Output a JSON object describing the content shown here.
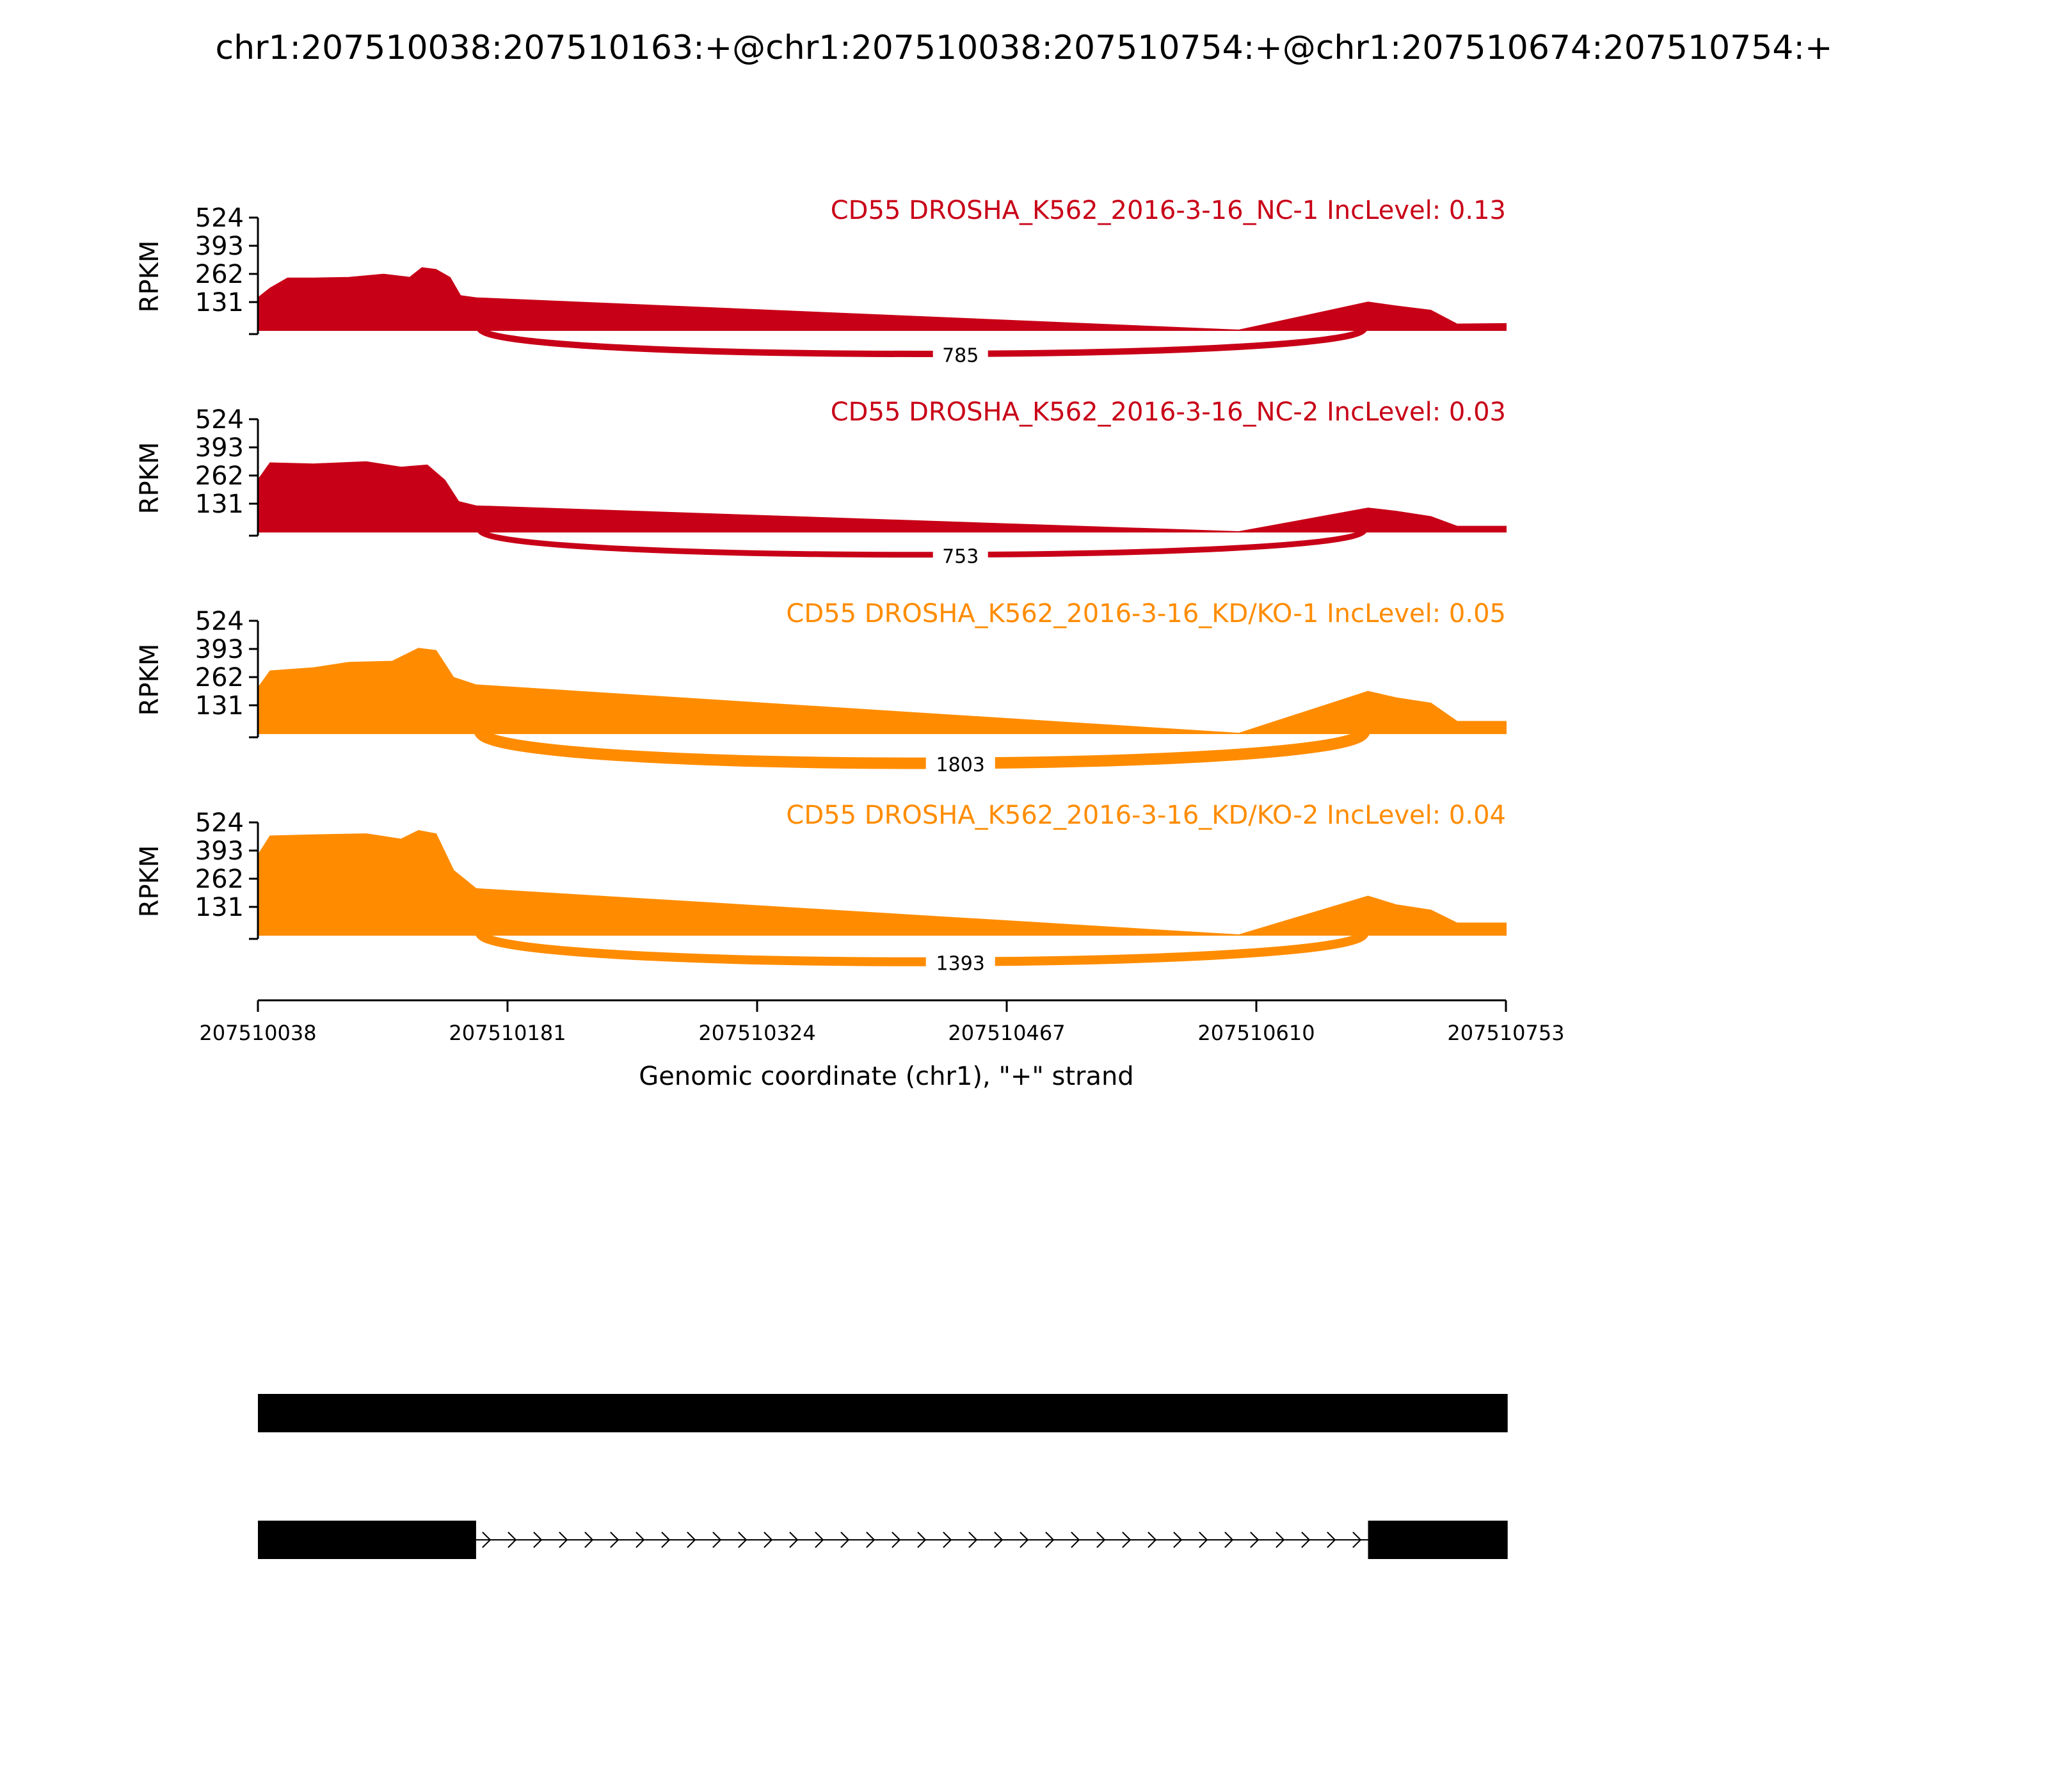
{
  "title": "chr1:207510038:207510163:+@chr1:207510038:207510754:+@chr1:207510674:207510754:+",
  "chart_data": {
    "type": "area",
    "xlabel": "Genomic coordinate (chr1), \"+\" strand",
    "ylabel": "RPKM",
    "xlim": [
      207510038,
      207510753
    ],
    "xticks": [
      207510038,
      207510181,
      207510324,
      207510467,
      207510610,
      207510753
    ],
    "ylim": [
      0,
      524
    ],
    "yticks": [
      131,
      262,
      393,
      524
    ],
    "exon1_end": 207510163,
    "exon2_start": 207510674,
    "panels": [
      {
        "label": "CD55 DROSHA_K562_2016-3-16_NC-1 IncLevel: 0.13",
        "color": "#c80017",
        "junction_count": "785",
        "junction_width": 10,
        "coverage": [
          [
            207510038,
            150
          ],
          [
            207510045,
            195
          ],
          [
            207510055,
            242
          ],
          [
            207510070,
            242
          ],
          [
            207510090,
            245
          ],
          [
            207510110,
            260
          ],
          [
            207510125,
            245
          ],
          [
            207510132,
            290
          ],
          [
            207510140,
            282
          ],
          [
            207510148,
            245
          ],
          [
            207510154,
            160
          ],
          [
            207510163,
            150
          ],
          [
            207510600,
            0
          ],
          [
            207510674,
            130
          ],
          [
            207510690,
            112
          ],
          [
            207510710,
            92
          ],
          [
            207510725,
            28
          ],
          [
            207510753,
            30
          ]
        ]
      },
      {
        "label": "CD55 DROSHA_K562_2016-3-16_NC-2 IncLevel: 0.03",
        "color": "#c80017",
        "junction_count": "753",
        "junction_width": 9,
        "coverage": [
          [
            207510038,
            240
          ],
          [
            207510045,
            320
          ],
          [
            207510070,
            315
          ],
          [
            207510100,
            325
          ],
          [
            207510120,
            300
          ],
          [
            207510135,
            310
          ],
          [
            207510145,
            240
          ],
          [
            207510153,
            140
          ],
          [
            207510163,
            120
          ],
          [
            207510600,
            0
          ],
          [
            207510674,
            110
          ],
          [
            207510690,
            95
          ],
          [
            207510710,
            70
          ],
          [
            207510725,
            25
          ],
          [
            207510753,
            25
          ]
        ]
      },
      {
        "label": "CD55 DROSHA_K562_2016-3-16_KD/KO-1 IncLevel: 0.05",
        "color": "#ff8c00",
        "junction_count": "1803",
        "junction_width": 18,
        "coverage": [
          [
            207510038,
            210
          ],
          [
            207510045,
            290
          ],
          [
            207510070,
            305
          ],
          [
            207510090,
            330
          ],
          [
            207510115,
            335
          ],
          [
            207510130,
            395
          ],
          [
            207510140,
            385
          ],
          [
            207510150,
            260
          ],
          [
            207510163,
            225
          ],
          [
            207510600,
            0
          ],
          [
            207510674,
            195
          ],
          [
            207510690,
            165
          ],
          [
            207510710,
            140
          ],
          [
            207510725,
            55
          ],
          [
            207510753,
            55
          ]
        ]
      },
      {
        "label": "CD55 DROSHA_K562_2016-3-16_KD/KO-2 IncLevel: 0.04",
        "color": "#ff8c00",
        "junction_count": "1393",
        "junction_width": 14,
        "coverage": [
          [
            207510038,
            370
          ],
          [
            207510045,
            460
          ],
          [
            207510070,
            465
          ],
          [
            207510100,
            470
          ],
          [
            207510120,
            445
          ],
          [
            207510130,
            485
          ],
          [
            207510140,
            470
          ],
          [
            207510150,
            300
          ],
          [
            207510163,
            215
          ],
          [
            207510600,
            0
          ],
          [
            207510674,
            180
          ],
          [
            207510690,
            140
          ],
          [
            207510710,
            115
          ],
          [
            207510725,
            55
          ],
          [
            207510753,
            55
          ]
        ]
      }
    ]
  },
  "isoforms": [
    {
      "exons": [
        [
          207510038,
          207510754
        ]
      ]
    },
    {
      "exons": [
        [
          207510038,
          207510163
        ],
        [
          207510674,
          207510754
        ]
      ]
    }
  ]
}
